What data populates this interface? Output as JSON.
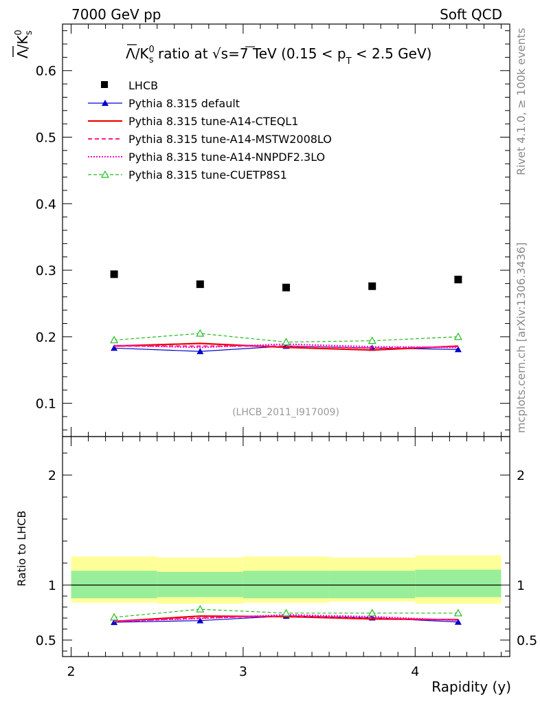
{
  "header": {
    "left": "7000 GeV pp",
    "right": "Soft QCD"
  },
  "side_text": {
    "rivet": "Rivet 4.1.0, ≥ 100k events",
    "mcplots": "mcplots.cern.ch [arXiv:1306.3436]"
  },
  "chart_data": {
    "type": "scatter",
    "title": "Λ̄/K⁰s ratio at √s=7 TeV (0.15 < pT < 2.5 GeV)",
    "title_parts": {
      "pre": "/K",
      "sup0": "0",
      "subs": "s",
      "mid": " ratio at ",
      "root": "√",
      "s": "s=7 TeV (0.15 < p",
      "subT": "T",
      "post": " < 2.5 GeV)",
      "lambda": "Λ"
    },
    "ylabel_main": {
      "lambda": "Λ",
      "slash": "/K",
      "sup": "0",
      "sub": "s"
    },
    "ylabel_ratio": "Ratio to LHCB",
    "xlabel": "Rapidity (y)",
    "watermark": "(LHCB_2011_I917009)",
    "xlim": [
      1.95,
      4.55
    ],
    "ylim_main": [
      0.05,
      0.67
    ],
    "ylim_ratio": [
      0.35,
      2.35
    ],
    "x_ticks": [
      "2",
      "3",
      "4"
    ],
    "y_ticks_main": [
      "0.1",
      "0.2",
      "0.3",
      "0.4",
      "0.5",
      "0.6"
    ],
    "y_ticks_ratio": [
      "0.5",
      "1",
      "2"
    ],
    "bins": [
      2.0,
      2.5,
      3.0,
      3.5,
      4.0,
      4.5
    ],
    "x": [
      2.25,
      2.75,
      3.25,
      3.75,
      4.25
    ],
    "data": {
      "name": "LHCB",
      "values": [
        0.294,
        0.279,
        0.274,
        0.276,
        0.286
      ]
    },
    "band_inner": [
      [
        0.88,
        1.13
      ],
      [
        0.89,
        1.12
      ],
      [
        0.88,
        1.13
      ],
      [
        0.88,
        1.13
      ],
      [
        0.89,
        1.14
      ]
    ],
    "band_outer": [
      [
        0.84,
        1.26
      ],
      [
        0.83,
        1.25
      ],
      [
        0.84,
        1.26
      ],
      [
        0.85,
        1.25
      ],
      [
        0.83,
        1.27
      ]
    ],
    "series": [
      {
        "name": "Pythia 8.315 default",
        "color": "#0000cc",
        "style": "solid",
        "marker": "triangle-filled",
        "values": [
          0.183,
          0.178,
          0.186,
          0.183,
          0.181
        ],
        "ratio": [
          0.662,
          0.677,
          0.719,
          0.703,
          0.664
        ]
      },
      {
        "name": "Pythia 8.315 tune-A14-CTEQL1",
        "color": "#ee0000",
        "style": "solid-thick",
        "marker": "none",
        "values": [
          0.186,
          0.19,
          0.184,
          0.18,
          0.186
        ],
        "ratio": [
          0.67,
          0.718,
          0.713,
          0.692,
          0.685
        ]
      },
      {
        "name": "Pythia 8.315 tune-A14-MSTW2008LO",
        "color": "#ff1a8c",
        "style": "dashed",
        "marker": "none",
        "values": [
          0.186,
          0.186,
          0.186,
          0.183,
          0.185
        ],
        "ratio": [
          0.668,
          0.701,
          0.72,
          0.701,
          0.682
        ]
      },
      {
        "name": "Pythia 8.315 tune-A14-NNPDF2.3LO",
        "color": "#ff00cc",
        "style": "dotted",
        "marker": "none",
        "values": [
          0.187,
          0.184,
          0.189,
          0.185,
          0.184
        ],
        "ratio": [
          0.671,
          0.696,
          0.73,
          0.713,
          0.679
        ]
      },
      {
        "name": "Pythia 8.315 tune-CUETP8S1",
        "color": "#22bb22",
        "style": "dashed-fine",
        "marker": "triangle-open",
        "values": [
          0.195,
          0.205,
          0.192,
          0.194,
          0.2
        ],
        "ratio": [
          0.707,
          0.78,
          0.745,
          0.745,
          0.745
        ]
      }
    ]
  }
}
